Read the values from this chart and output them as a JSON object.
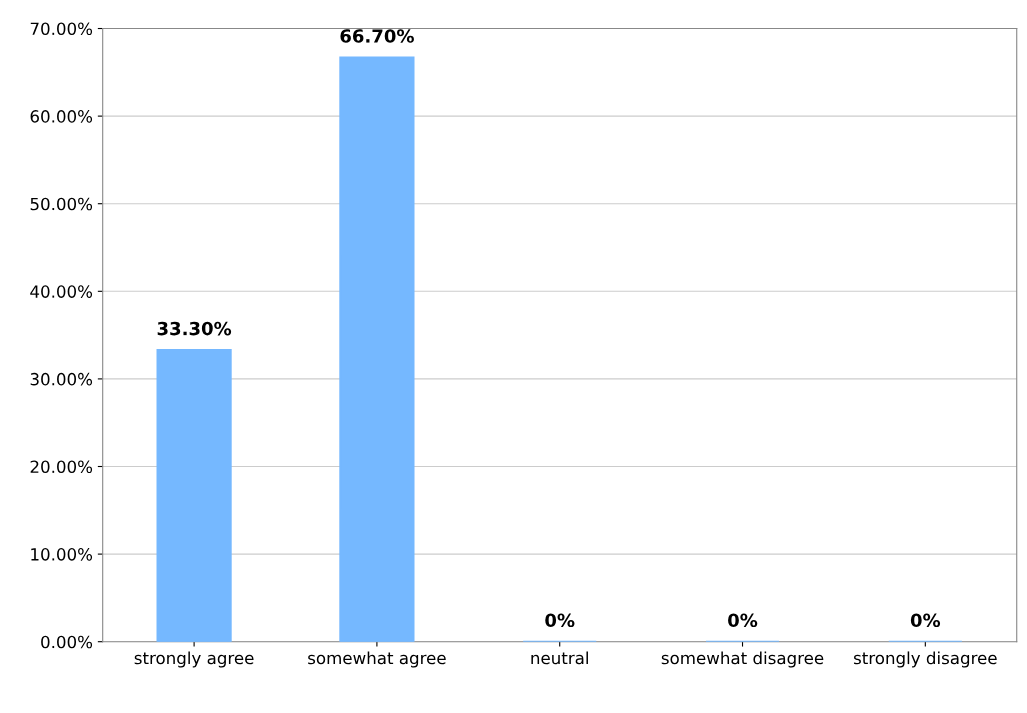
{
  "chart_data": {
    "type": "bar",
    "categories": [
      "strongly agree",
      "somewhat agree",
      "neutral",
      "somewhat disagree",
      "strongly disagree"
    ],
    "values": [
      33.3,
      66.7,
      0,
      0,
      0
    ],
    "value_labels": [
      "33.30%",
      "66.70%",
      "0%",
      "0%",
      "0%"
    ],
    "color": "#75b8ff",
    "ylim": [
      0,
      70
    ],
    "yticks": [
      {
        "value": 0,
        "label": "0.00%"
      },
      {
        "value": 10,
        "label": "10.00%"
      },
      {
        "value": 20,
        "label": "20.00%"
      },
      {
        "value": 30,
        "label": "30.00%"
      },
      {
        "value": 40,
        "label": "40.00%"
      },
      {
        "value": 50,
        "label": "50.00%"
      },
      {
        "value": 60,
        "label": "60.00%"
      },
      {
        "value": 70,
        "label": "70.00%"
      }
    ],
    "grid": "y"
  }
}
